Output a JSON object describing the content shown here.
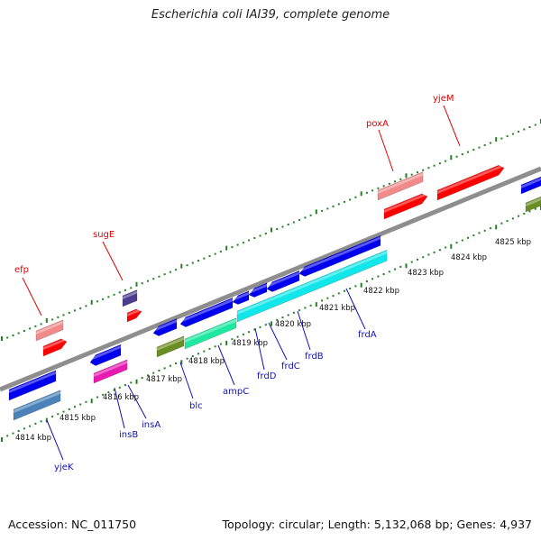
{
  "title": "Escherichia coli IAI39, complete genome",
  "footer": {
    "accession": "Accession: NC_011750",
    "summary": "Topology: circular; Length: 5,132,068 bp; Genes: 4,937"
  },
  "colors": {
    "backbone": "#8e8e8e",
    "tick": "#237f23",
    "forward_label": "#dd0000",
    "reverse_label": "#1212b8",
    "scale_text": "#111111"
  },
  "scale_labels": [
    "4814 kbp",
    "4815 kbp",
    "4816 kbp",
    "4817 kbp",
    "4818 kbp",
    "4819 kbp",
    "4820 kbp",
    "4821 kbp",
    "4822 kbp",
    "4823 kbp",
    "4824 kbp",
    "4825 kbp"
  ],
  "gene_labels_forward": [
    "efp",
    "sugE",
    "poxA",
    "yjeM"
  ],
  "gene_labels_reverse": [
    "yjeK",
    "insB",
    "insA",
    "blc",
    "ampC",
    "frdD",
    "frdC",
    "frdB",
    "frdA"
  ],
  "feature_colors": [
    "#f28a8a",
    "#ff0000",
    "#4b3c8f",
    "#0000ee",
    "#4a82b9",
    "#e81bb0",
    "#6b8e23",
    "#1fe9a0",
    "#11e7ea"
  ]
}
